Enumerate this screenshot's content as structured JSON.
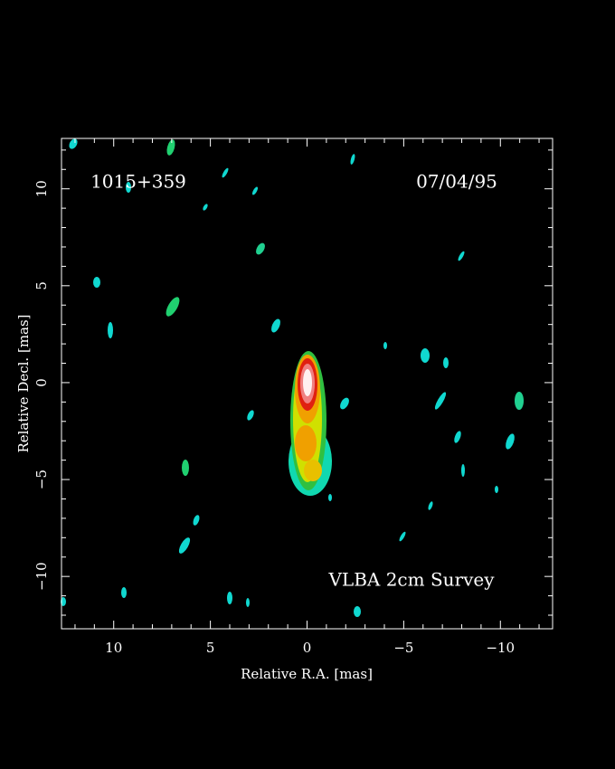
{
  "chart_data": {
    "type": "image",
    "source_label": "1015+359",
    "date_label": "07/04/95",
    "survey_label": "VLBA 2cm Survey",
    "x_label": "Relative R.A. [mas]",
    "y_label": "Relative Decl. [mas]",
    "xlim": [
      12.7,
      -12.7
    ],
    "ylim": [
      -12.7,
      12.6
    ],
    "xticks": [
      10,
      5,
      0,
      {
        "value": -5,
        "label": "−5"
      },
      {
        "value": -10,
        "label": "−10"
      }
    ],
    "yticks": [
      {
        "value": -10,
        "label": "−10"
      },
      {
        "value": -5,
        "label": "−5"
      },
      0,
      5,
      10
    ],
    "xminorticks": [
      12,
      11,
      9,
      8,
      7,
      6,
      4,
      3,
      2,
      1,
      -1,
      -2,
      -3,
      -4,
      -6,
      -7,
      -8,
      -9,
      -11,
      -12
    ],
    "yminorticks": [
      12,
      11,
      9,
      8,
      7,
      6,
      4,
      3,
      2,
      1,
      -1,
      -2,
      -3,
      -4,
      -6,
      -7,
      -8,
      -9,
      -11,
      -12
    ],
    "axis_color": "#ffffff"
  }
}
